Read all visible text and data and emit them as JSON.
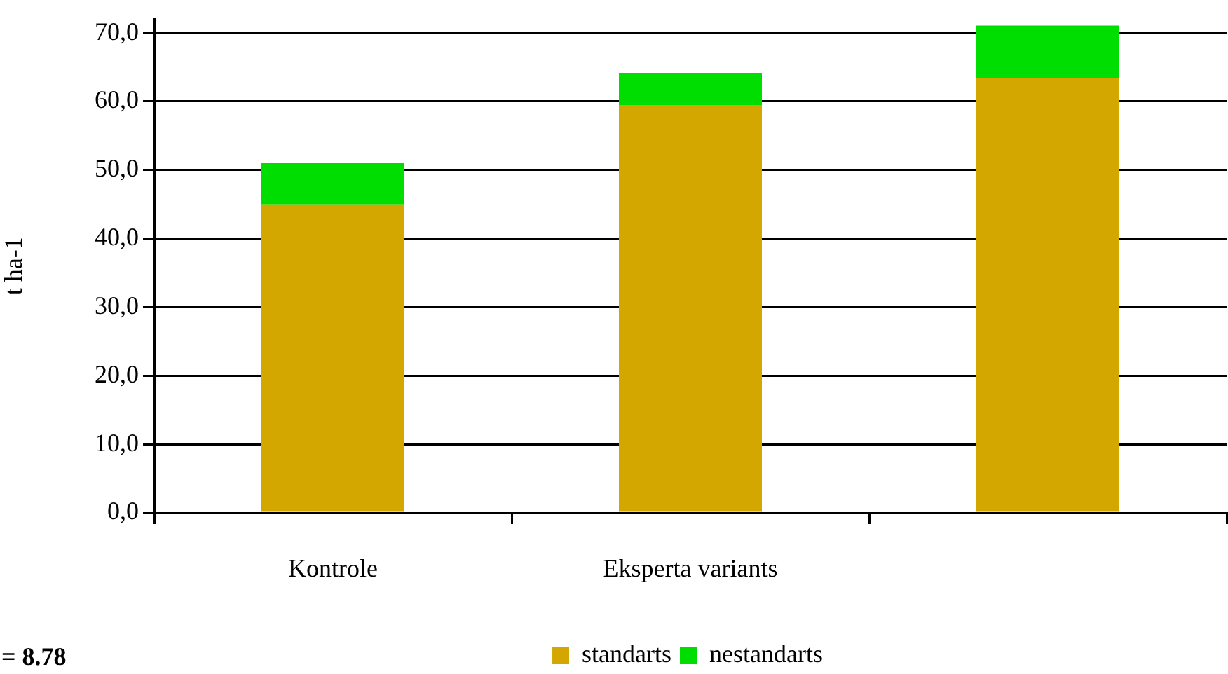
{
  "chart_data": {
    "type": "bar",
    "categories": [
      "Kontrole",
      "Eksperta variants",
      null
    ],
    "series": [
      {
        "name": "standarts",
        "color": "#d4a600",
        "values": [
          45.0,
          59.4,
          63.4
        ]
      },
      {
        "name": "nestandarts",
        "color": "#00dd00",
        "values": [
          6.0,
          4.8,
          7.7
        ]
      }
    ],
    "stacked": true,
    "ylabel": "t ha-1",
    "ylim": [
      0,
      72
    ],
    "yticks": [
      {
        "value": 0,
        "label": "0,0"
      },
      {
        "value": 10,
        "label": "10,0"
      },
      {
        "value": 20,
        "label": "20,0"
      },
      {
        "value": 30,
        "label": "30,0"
      },
      {
        "value": 40,
        "label": "40,0"
      },
      {
        "value": 50,
        "label": "50,0"
      },
      {
        "value": 60,
        "label": "60,0"
      },
      {
        "value": 70,
        "label": "70,0"
      }
    ],
    "grid": "y",
    "legend": "bottom",
    "annotations": [
      "= 8.78"
    ]
  }
}
